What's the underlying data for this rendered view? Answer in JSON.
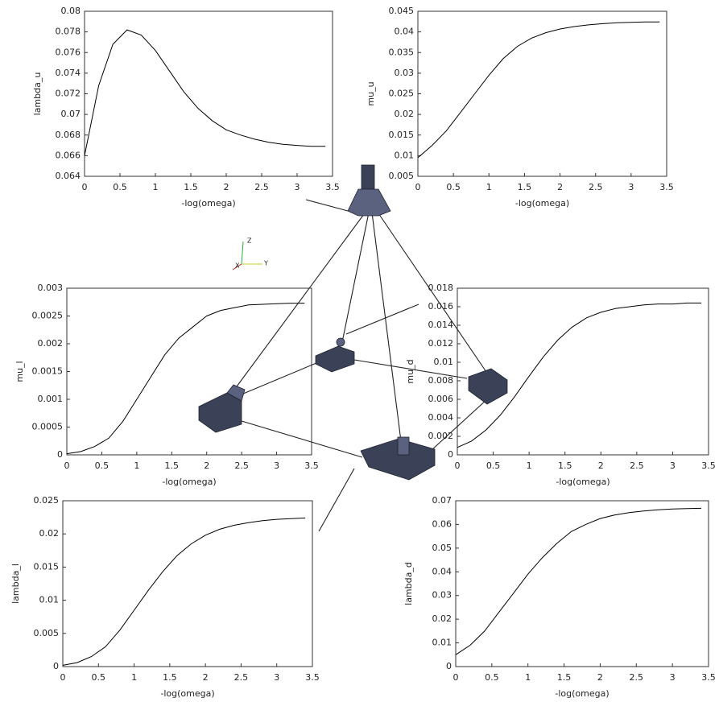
{
  "chart_data": [
    {
      "type": "line",
      "ylabel": "lambda_u",
      "xlabel": "-log(omega)",
      "color": "#000000",
      "x": [
        0,
        0.2,
        0.4,
        0.6,
        0.8,
        1.0,
        1.2,
        1.4,
        1.6,
        1.8,
        2.0,
        2.2,
        2.4,
        2.6,
        2.8,
        3.0,
        3.2,
        3.4
      ],
      "values": [
        0.066,
        0.0728,
        0.0768,
        0.0782,
        0.0777,
        0.0762,
        0.0742,
        0.0722,
        0.0706,
        0.0694,
        0.0685,
        0.068,
        0.0676,
        0.0673,
        0.0671,
        0.067,
        0.0669,
        0.0669
      ],
      "xlim": [
        0,
        3.5
      ],
      "xticks": [
        0,
        0.5,
        1,
        1.5,
        2,
        2.5,
        3,
        3.5
      ],
      "ylim": [
        0.064,
        0.08
      ],
      "yticks": [
        0.064,
        0.066,
        0.068,
        0.07,
        0.072,
        0.074,
        0.076,
        0.078,
        0.08
      ]
    },
    {
      "type": "line",
      "ylabel": "mu_u",
      "xlabel": "-log(omega)",
      "color": "#000000",
      "x": [
        0,
        0.2,
        0.4,
        0.6,
        0.8,
        1.0,
        1.2,
        1.4,
        1.6,
        1.8,
        2.0,
        2.2,
        2.4,
        2.6,
        2.8,
        3.0,
        3.2,
        3.4
      ],
      "values": [
        0.0095,
        0.0125,
        0.016,
        0.0205,
        0.025,
        0.0295,
        0.0335,
        0.0365,
        0.0385,
        0.0398,
        0.0407,
        0.0413,
        0.0417,
        0.042,
        0.0422,
        0.0423,
        0.0424,
        0.0424
      ],
      "xlim": [
        0,
        3.5
      ],
      "xticks": [
        0,
        0.5,
        1,
        1.5,
        2,
        2.5,
        3,
        3.5
      ],
      "ylim": [
        0.005,
        0.045
      ],
      "yticks": [
        0.005,
        0.01,
        0.015,
        0.02,
        0.025,
        0.03,
        0.035,
        0.04,
        0.045
      ]
    },
    {
      "type": "line",
      "ylabel": "mu_l",
      "xlabel": "-log(omega)",
      "color": "#000000",
      "x": [
        0,
        0.2,
        0.4,
        0.6,
        0.8,
        1.0,
        1.2,
        1.4,
        1.6,
        1.8,
        2.0,
        2.2,
        2.4,
        2.6,
        2.8,
        3.0,
        3.2,
        3.4
      ],
      "values": [
        2e-05,
        6e-05,
        0.00015,
        0.0003,
        0.0006,
        0.001,
        0.0014,
        0.0018,
        0.0021,
        0.0023,
        0.0025,
        0.0026,
        0.00265,
        0.0027,
        0.00271,
        0.00272,
        0.00273,
        0.00273
      ],
      "xlim": [
        0,
        3.5
      ],
      "xticks": [
        0,
        0.5,
        1,
        1.5,
        2,
        2.5,
        3,
        3.5
      ],
      "ylim": [
        0,
        0.003
      ],
      "yticks": [
        0,
        0.0005,
        0.001,
        0.0015,
        0.002,
        0.0025,
        0.003
      ]
    },
    {
      "type": "line",
      "ylabel": "mu_d",
      "xlabel": "-log(omega)",
      "color": "#000000",
      "x": [
        0,
        0.2,
        0.4,
        0.6,
        0.8,
        1.0,
        1.2,
        1.4,
        1.6,
        1.8,
        2.0,
        2.2,
        2.4,
        2.6,
        2.8,
        3.0,
        3.2,
        3.4
      ],
      "values": [
        0.0008,
        0.0015,
        0.0027,
        0.0043,
        0.0063,
        0.0085,
        0.0106,
        0.0124,
        0.0138,
        0.0148,
        0.0154,
        0.0158,
        0.016,
        0.0162,
        0.0163,
        0.0163,
        0.0164,
        0.0164
      ],
      "xlim": [
        0,
        3.5
      ],
      "xticks": [
        0,
        0.5,
        1,
        1.5,
        2,
        2.5,
        3,
        3.5
      ],
      "ylim": [
        0,
        0.018
      ],
      "yticks": [
        0,
        0.002,
        0.004,
        0.006,
        0.008,
        0.01,
        0.012,
        0.014,
        0.016,
        0.018
      ]
    },
    {
      "type": "line",
      "ylabel": "lambda_l",
      "xlabel": "-log(omega)",
      "color": "#000000",
      "x": [
        0,
        0.2,
        0.4,
        0.6,
        0.8,
        1.0,
        1.2,
        1.4,
        1.6,
        1.8,
        2.0,
        2.2,
        2.4,
        2.6,
        2.8,
        3.0,
        3.2,
        3.4
      ],
      "values": [
        0.0002,
        0.0006,
        0.0015,
        0.003,
        0.0055,
        0.0085,
        0.0115,
        0.0143,
        0.0167,
        0.0185,
        0.0198,
        0.0207,
        0.0213,
        0.0217,
        0.022,
        0.0222,
        0.0223,
        0.0224
      ],
      "xlim": [
        0,
        3.5
      ],
      "xticks": [
        0,
        0.5,
        1,
        1.5,
        2,
        2.5,
        3,
        3.5
      ],
      "ylim": [
        0,
        0.025
      ],
      "yticks": [
        0,
        0.005,
        0.01,
        0.015,
        0.02,
        0.025
      ]
    },
    {
      "type": "line",
      "ylabel": "lambda_d",
      "xlabel": "-log(omega)",
      "color": "#000000",
      "x": [
        0,
        0.2,
        0.4,
        0.6,
        0.8,
        1.0,
        1.2,
        1.4,
        1.6,
        1.8,
        2.0,
        2.2,
        2.4,
        2.6,
        2.8,
        3.0,
        3.2,
        3.4
      ],
      "values": [
        0.005,
        0.009,
        0.015,
        0.023,
        0.031,
        0.039,
        0.046,
        0.052,
        0.057,
        0.06,
        0.0625,
        0.064,
        0.065,
        0.0657,
        0.0662,
        0.0665,
        0.0667,
        0.0668
      ],
      "xlim": [
        0,
        3.5
      ],
      "xticks": [
        0,
        0.5,
        1,
        1.5,
        2,
        2.5,
        3,
        3.5
      ],
      "ylim": [
        0,
        0.07
      ],
      "yticks": [
        0,
        0.01,
        0.02,
        0.03,
        0.04,
        0.05,
        0.06,
        0.07
      ]
    }
  ],
  "diagram": {
    "axes": [
      "Z",
      "X",
      "Y"
    ]
  }
}
